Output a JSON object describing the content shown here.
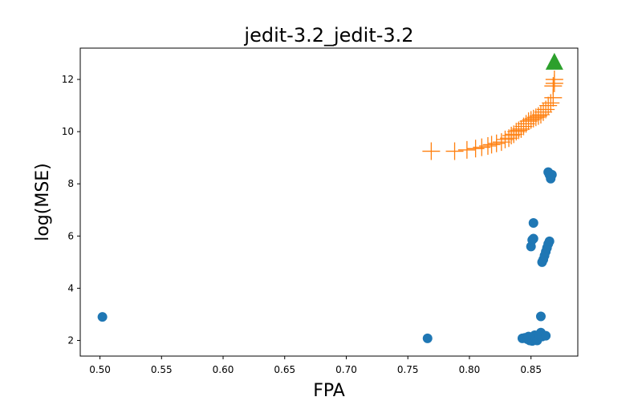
{
  "chart_data": {
    "type": "scatter",
    "title": "jedit-3.2_jedit-3.2",
    "xlabel": "FPA",
    "ylabel": "log(MSE)",
    "xlim": [
      0.484,
      0.888
    ],
    "ylim": [
      1.4,
      13.2
    ],
    "xticks": [
      "0.50",
      "0.55",
      "0.60",
      "0.65",
      "0.70",
      "0.75",
      "0.80",
      "0.85"
    ],
    "yticks": [
      "2",
      "4",
      "6",
      "8",
      "10",
      "12"
    ],
    "grid": false,
    "series": [
      {
        "marker": "circle",
        "color": "#1f77b4",
        "points": [
          [
            0.502,
            2.9
          ],
          [
            0.766,
            2.08
          ],
          [
            0.843,
            2.08
          ],
          [
            0.845,
            2.1
          ],
          [
            0.847,
            2.05
          ],
          [
            0.848,
            2.15
          ],
          [
            0.849,
            2.0
          ],
          [
            0.85,
            2.1
          ],
          [
            0.851,
            1.98
          ],
          [
            0.852,
            2.12
          ],
          [
            0.853,
            2.2
          ],
          [
            0.854,
            2.05
          ],
          [
            0.855,
            2.0
          ],
          [
            0.856,
            2.1
          ],
          [
            0.857,
            2.2
          ],
          [
            0.858,
            2.3
          ],
          [
            0.859,
            2.15
          ],
          [
            0.862,
            2.18
          ],
          [
            0.858,
            2.92
          ],
          [
            0.85,
            5.6
          ],
          [
            0.851,
            5.85
          ],
          [
            0.852,
            5.9
          ],
          [
            0.852,
            6.5
          ],
          [
            0.859,
            5.0
          ],
          [
            0.86,
            5.1
          ],
          [
            0.861,
            5.25
          ],
          [
            0.862,
            5.4
          ],
          [
            0.863,
            5.55
          ],
          [
            0.864,
            5.7
          ],
          [
            0.865,
            5.8
          ],
          [
            0.864,
            8.45
          ],
          [
            0.865,
            8.35
          ],
          [
            0.866,
            8.2
          ],
          [
            0.867,
            8.35
          ]
        ]
      },
      {
        "marker": "plus",
        "color": "#ff7f0e",
        "points": [
          [
            0.769,
            9.25
          ],
          [
            0.788,
            9.25
          ],
          [
            0.798,
            9.3
          ],
          [
            0.805,
            9.35
          ],
          [
            0.81,
            9.4
          ],
          [
            0.815,
            9.45
          ],
          [
            0.818,
            9.5
          ],
          [
            0.822,
            9.55
          ],
          [
            0.826,
            9.6
          ],
          [
            0.829,
            9.7
          ],
          [
            0.832,
            9.75
          ],
          [
            0.834,
            9.85
          ],
          [
            0.836,
            9.9
          ],
          [
            0.838,
            10.0
          ],
          [
            0.84,
            10.05
          ],
          [
            0.842,
            10.1
          ],
          [
            0.844,
            10.2
          ],
          [
            0.846,
            10.3
          ],
          [
            0.848,
            10.4
          ],
          [
            0.85,
            10.45
          ],
          [
            0.852,
            10.5
          ],
          [
            0.854,
            10.55
          ],
          [
            0.856,
            10.6
          ],
          [
            0.858,
            10.65
          ],
          [
            0.86,
            10.75
          ],
          [
            0.862,
            10.85
          ],
          [
            0.864,
            11.0
          ],
          [
            0.866,
            11.1
          ],
          [
            0.868,
            11.3
          ],
          [
            0.868,
            11.75
          ],
          [
            0.869,
            11.85
          ],
          [
            0.869,
            12.0
          ]
        ]
      },
      {
        "marker": "triangle",
        "color": "#2ca02c",
        "points": [
          [
            0.869,
            12.65
          ]
        ]
      }
    ]
  }
}
